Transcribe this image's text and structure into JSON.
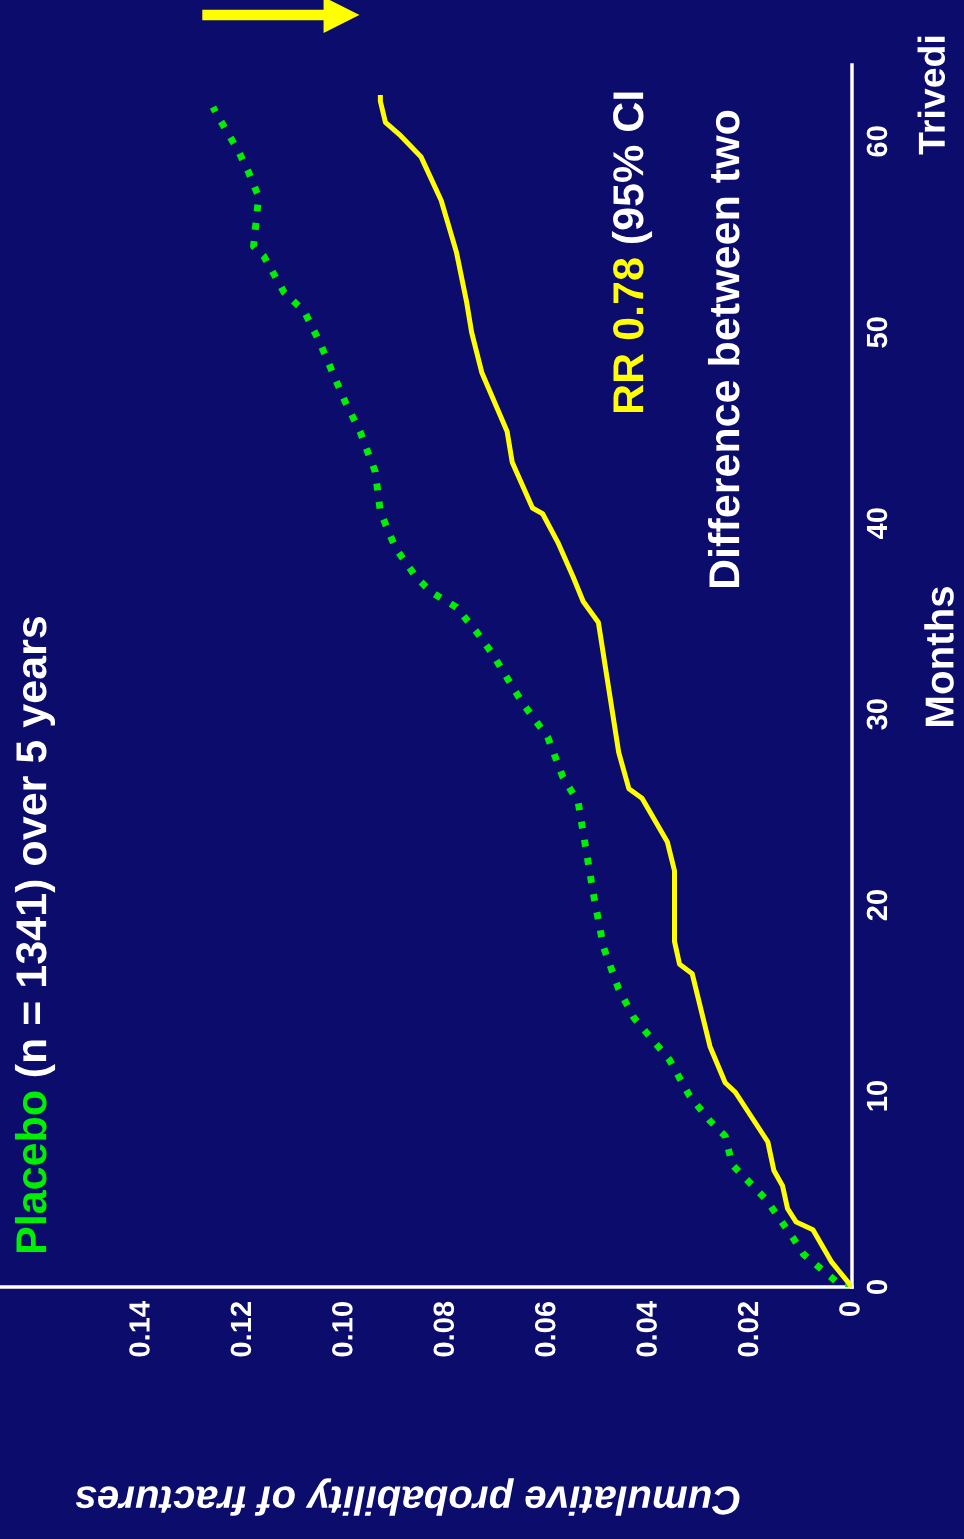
{
  "chart_data": {
    "type": "line",
    "title": "(n = 1341) over 5 years",
    "xlabel": "Cumulative probability of fractures",
    "ylabel": "Months",
    "annotations": [
      "RR 0.78",
      "(95% CI",
      "Difference between two",
      "Trivedi"
    ],
    "xlim": [
      0.168,
      0
    ],
    "xticks": [
      0,
      0.02,
      0.04,
      0.06,
      0.08,
      {
        "value": 0.1,
        "label": "0.10"
      },
      0.12,
      0.14
    ],
    "ylim": [
      0,
      64
    ],
    "yticks": [
      0,
      10,
      20,
      30,
      40,
      50,
      60
    ],
    "grid": false,
    "legend": false,
    "marker": "none",
    "series": [
      {
        "name": "Placebo",
        "color": "#00ee00",
        "line_style": "dotted",
        "values": [
          0,
          0.05,
          1.7,
          2.6,
          4.6,
          6.4,
          7.9,
          8.7,
          10.0,
          11.9,
          14.1,
          15.6,
          17.8,
          20.6,
          25.4,
          26.7,
          28.8,
          30.6,
          33.2,
          34.3,
          35.6,
          36.4,
          37.2,
          38.7,
          40.6,
          42.7,
          44.8,
          46.4,
          49.5,
          51.1,
          52.1,
          54.0,
          54.5,
          57.1,
          58.4,
          59.5,
          61.3,
          61.8
        ],
        "x": [
          0,
          0.002,
          0.0095,
          0.0117,
          0.017,
          0.0236,
          0.025,
          0.028,
          0.032,
          0.036,
          0.043,
          0.046,
          0.049,
          0.051,
          0.054,
          0.057,
          0.06,
          0.065,
          0.071,
          0.074,
          0.078,
          0.083,
          0.086,
          0.09,
          0.093,
          0.094,
          0.097,
          0.1,
          0.105,
          0.108,
          0.112,
          0.116,
          0.118,
          0.117,
          0.119,
          0.121,
          0.125,
          0.126
        ]
      },
      {
        "color": "#ffff00",
        "line_style": "solid",
        "values": [
          0,
          1.3,
          3.0,
          3.4,
          4.1,
          5.3,
          6.1,
          7.6,
          10.2,
          10.7,
          12.6,
          16.4,
          16.9,
          18.1,
          21.8,
          23.3,
          25.6,
          26.1,
          28.0,
          34.8,
          35.9,
          37.2,
          39.0,
          40.5,
          40.8,
          43.2,
          44.8,
          47.9,
          50.0,
          51.6,
          54.2,
          56.9,
          59.2,
          60.3,
          61.0,
          62.1,
          62.3
        ],
        "x": [
          0,
          0.004,
          0.0077,
          0.011,
          0.0127,
          0.0137,
          0.0154,
          0.0166,
          0.023,
          0.025,
          0.028,
          0.0315,
          0.034,
          0.035,
          0.035,
          0.0364,
          0.0414,
          0.044,
          0.046,
          0.05,
          0.053,
          0.055,
          0.058,
          0.061,
          0.063,
          0.067,
          0.068,
          0.073,
          0.075,
          0.076,
          0.078,
          0.081,
          0.085,
          0.089,
          0.092,
          0.093,
          0.093
        ]
      }
    ]
  }
}
